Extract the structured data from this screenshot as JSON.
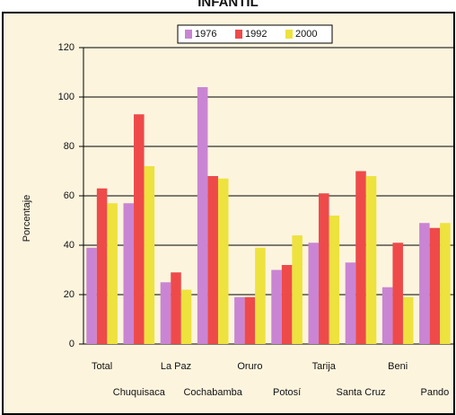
{
  "chart_data": {
    "type": "bar",
    "title": "INFANTIL",
    "y_label": "Porcentaje",
    "categories": [
      "Total",
      "Chuquisaca",
      "La Paz",
      "Cochabamba",
      "Oruro",
      "Potosí",
      "Tarija",
      "Santa Cruz",
      "Beni",
      "Pando"
    ],
    "series": [
      {
        "name": "1976",
        "color": "#c985d3",
        "values": [
          39,
          57,
          25,
          104,
          19,
          30,
          41,
          33,
          23,
          49
        ]
      },
      {
        "name": "1992",
        "color": "#ee4a4a",
        "values": [
          63,
          93,
          29,
          68,
          19,
          32,
          61,
          70,
          41,
          47
        ]
      },
      {
        "name": "2000",
        "color": "#eee23e",
        "values": [
          57,
          72,
          22,
          67,
          39,
          44,
          52,
          68,
          19,
          49
        ]
      }
    ],
    "ylim": [
      0,
      120
    ],
    "yticks": [
      0,
      20,
      40,
      60,
      80,
      100,
      120
    ],
    "grid": true
  }
}
